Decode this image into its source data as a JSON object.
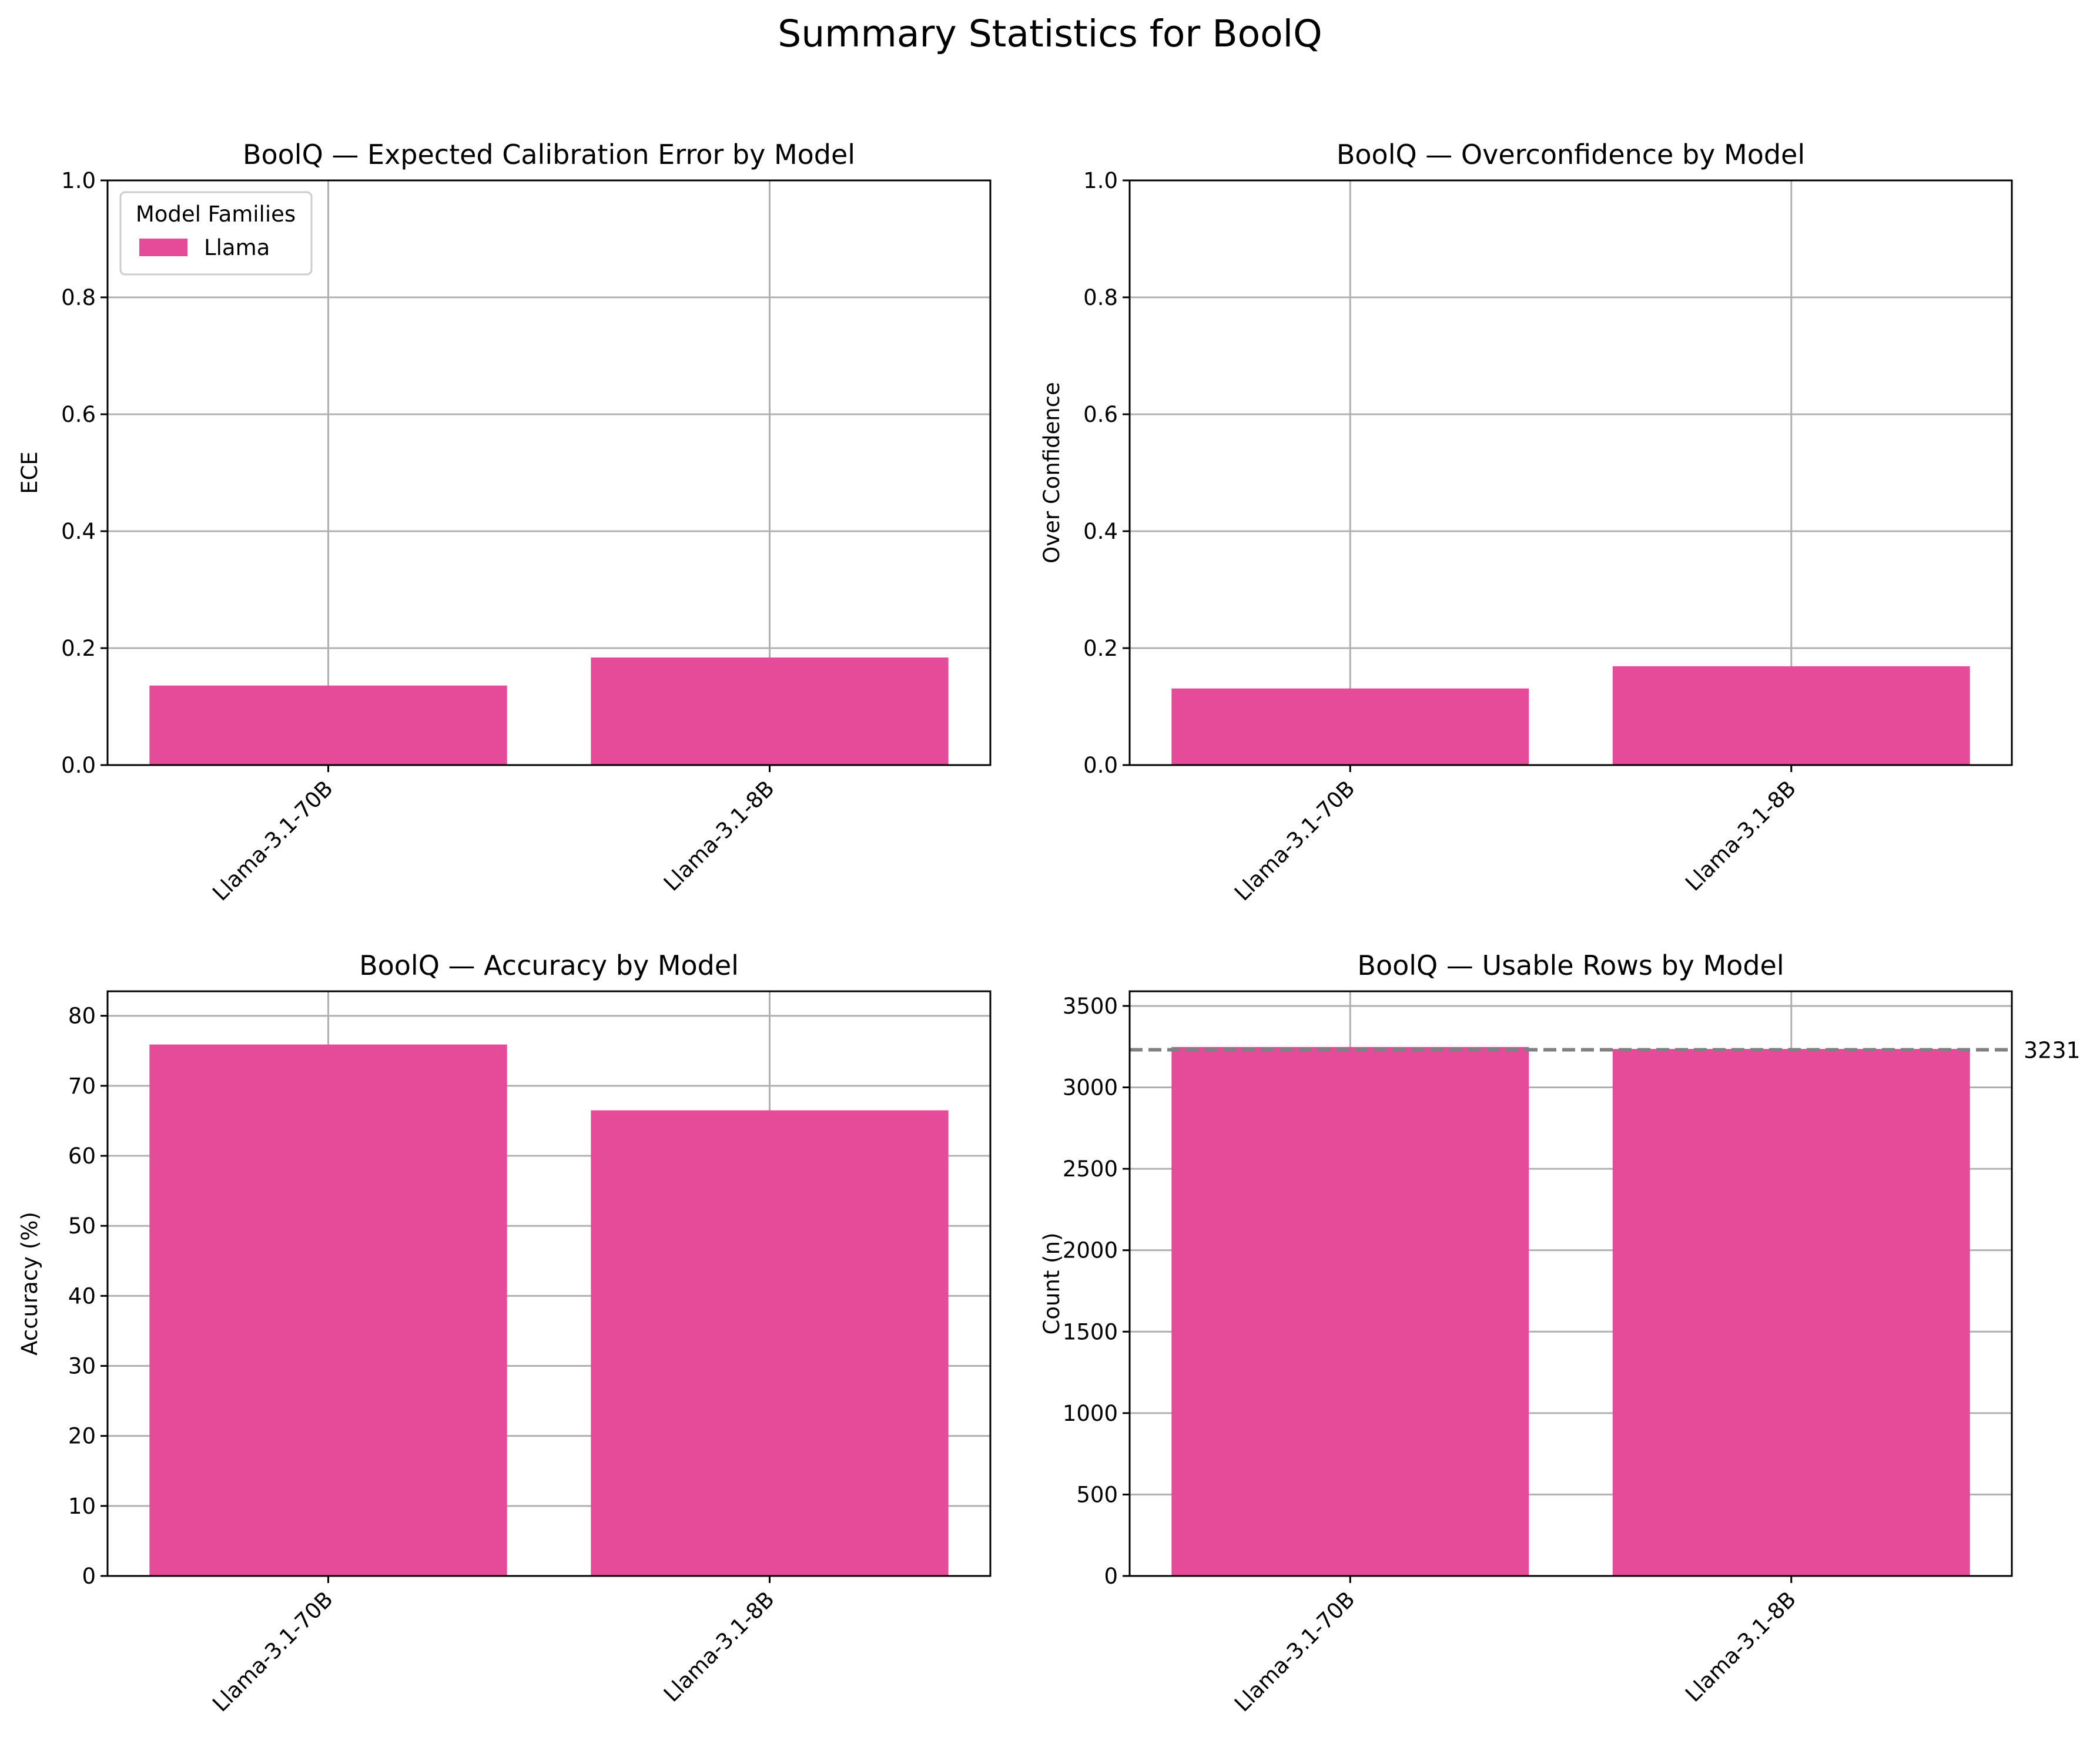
{
  "figure": {
    "title": "Summary Statistics for BoolQ"
  },
  "chart_data": [
    {
      "type": "bar",
      "title": "BoolQ — Expected Calibration Error by Model",
      "xlabel": "",
      "ylabel": "ECE",
      "categories": [
        "Llama-3.1-70B",
        "Llama-3.1-8B"
      ],
      "series": [
        {
          "name": "Llama",
          "values": [
            0.136,
            0.184
          ]
        }
      ],
      "ylim": [
        0,
        1.0
      ],
      "yticks": [
        0.0,
        0.2,
        0.4,
        0.6,
        0.8,
        1.0
      ],
      "ytick_labels": [
        "0.0",
        "0.2",
        "0.4",
        "0.6",
        "0.8",
        "1.0"
      ],
      "grid": true,
      "legend": {
        "title": "Model Families",
        "position": "top-left"
      }
    },
    {
      "type": "bar",
      "title": "BoolQ — Overconfidence by Model",
      "xlabel": "",
      "ylabel": "Over Confidence",
      "categories": [
        "Llama-3.1-70B",
        "Llama-3.1-8B"
      ],
      "series": [
        {
          "values": [
            0.131,
            0.169
          ]
        }
      ],
      "ylim": [
        0,
        1.0
      ],
      "yticks": [
        0.0,
        0.2,
        0.4,
        0.6,
        0.8,
        1.0
      ],
      "ytick_labels": [
        "0.0",
        "0.2",
        "0.4",
        "0.6",
        "0.8",
        "1.0"
      ],
      "grid": true
    },
    {
      "type": "bar",
      "title": "BoolQ — Accuracy by Model",
      "xlabel": "",
      "ylabel": "Accuracy (%)",
      "categories": [
        "Llama-3.1-70B",
        "Llama-3.1-8B"
      ],
      "series": [
        {
          "values": [
            75.9,
            66.5
          ]
        }
      ],
      "ylim": [
        0,
        83.5
      ],
      "yticks": [
        0,
        10,
        20,
        30,
        40,
        50,
        60,
        70,
        80
      ],
      "ytick_labels": [
        "0",
        "10",
        "20",
        "30",
        "40",
        "50",
        "60",
        "70",
        "80"
      ],
      "grid": true
    },
    {
      "type": "bar",
      "title": "BoolQ — Usable Rows by Model",
      "xlabel": "",
      "ylabel": "Count (n)",
      "categories": [
        "Llama-3.1-70B",
        "Llama-3.1-8B"
      ],
      "series": [
        {
          "values": [
            3248,
            3236
          ]
        }
      ],
      "ylim": [
        0,
        3590
      ],
      "yticks": [
        0,
        500,
        1000,
        1500,
        2000,
        2500,
        3000,
        3500
      ],
      "ytick_labels": [
        "0",
        "500",
        "1000",
        "1500",
        "2000",
        "2500",
        "3000",
        "3500"
      ],
      "grid": true,
      "reference_line": {
        "value": 3231,
        "label": "3231",
        "style": "dashed"
      }
    }
  ],
  "colors": {
    "bar": "#e64b99",
    "grid": "#b0b0b0",
    "reference_line": "#808080",
    "axes": "#000000"
  }
}
